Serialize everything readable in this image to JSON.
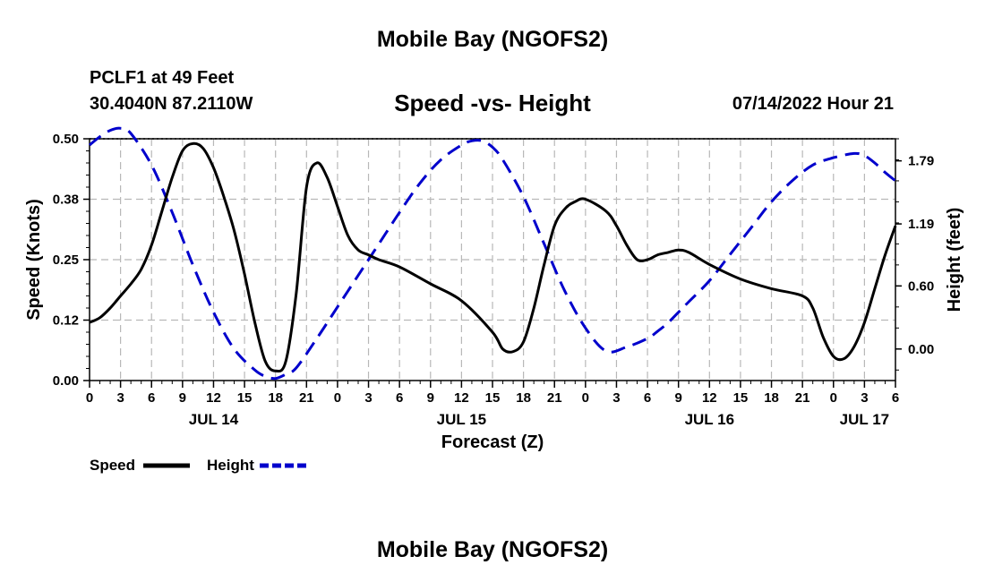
{
  "header": {
    "title": "Mobile Bay (NGOFS2)",
    "station": "PCLF1 at 49 Feet",
    "coordinates": "30.4040N  87.2110W",
    "timestamp": "07/14/2022 Hour 21"
  },
  "footer": {
    "title": "Mobile Bay (NGOFS2)"
  },
  "chart_data": {
    "type": "line",
    "title": "Speed -vs- Height",
    "xlabel": "Forecast (Z)",
    "ylabel_left": "Speed (Knots)",
    "ylabel_right": "Height (feet)",
    "x_unit": "hours from 2022-07-14 00Z",
    "xlim": [
      0,
      78
    ],
    "ylim_left": [
      0,
      0.5
    ],
    "ylim_right": [
      -0.3,
      2.0
    ],
    "grid": true,
    "x_ticks": [
      0,
      3,
      6,
      9,
      12,
      15,
      18,
      21,
      24,
      27,
      30,
      33,
      36,
      39,
      42,
      45,
      48,
      51,
      54,
      57,
      60,
      63,
      66,
      69,
      72,
      75,
      78
    ],
    "x_tick_labels": [
      "0",
      "3",
      "6",
      "9",
      "12",
      "15",
      "18",
      "21",
      "0",
      "3",
      "6",
      "9",
      "12",
      "15",
      "18",
      "21",
      "0",
      "3",
      "6",
      "9",
      "12",
      "15",
      "18",
      "21",
      "0",
      "3",
      "6"
    ],
    "date_labels": [
      {
        "label": "JUL 14",
        "x": 12
      },
      {
        "label": "JUL 15",
        "x": 36
      },
      {
        "label": "JUL 16",
        "x": 60
      },
      {
        "label": "JUL 17",
        "x": 75
      }
    ],
    "left_ticks": [
      {
        "value": 0,
        "label": "0.00"
      },
      {
        "value": 0.125,
        "label": "0.12"
      },
      {
        "value": 0.25,
        "label": "0.25"
      },
      {
        "value": 0.375,
        "label": "0.38"
      },
      {
        "value": 0.5,
        "label": "0.50"
      }
    ],
    "right_ticks": [
      {
        "value": 0,
        "label": "0.00"
      },
      {
        "value": 0.6,
        "label": "0.60"
      },
      {
        "value": 1.19,
        "label": "1.19"
      },
      {
        "value": 1.79,
        "label": "1.79"
      }
    ],
    "series": [
      {
        "name": "Speed",
        "axis": "left",
        "color": "#000000",
        "style": "solid",
        "x": [
          0,
          1,
          2,
          3,
          4,
          5,
          6,
          7,
          8,
          9,
          10,
          11,
          12,
          13,
          14,
          15,
          16,
          17,
          18,
          19,
          20,
          21,
          22,
          23,
          24,
          25,
          26,
          27,
          28,
          30,
          33,
          36,
          39,
          40,
          41,
          42,
          43,
          44,
          45,
          46,
          47,
          48,
          50,
          51,
          52,
          53,
          54,
          55,
          56,
          57,
          58,
          60,
          63,
          66,
          69,
          70,
          71,
          72,
          73,
          74,
          75,
          76,
          77,
          78
        ],
        "values": [
          0.12,
          0.13,
          0.15,
          0.175,
          0.2,
          0.23,
          0.28,
          0.35,
          0.42,
          0.475,
          0.49,
          0.48,
          0.44,
          0.38,
          0.31,
          0.22,
          0.12,
          0.04,
          0.02,
          0.04,
          0.18,
          0.4,
          0.45,
          0.42,
          0.36,
          0.3,
          0.27,
          0.26,
          0.25,
          0.235,
          0.2,
          0.165,
          0.1,
          0.065,
          0.06,
          0.08,
          0.15,
          0.24,
          0.32,
          0.355,
          0.37,
          0.375,
          0.35,
          0.32,
          0.28,
          0.25,
          0.25,
          0.26,
          0.265,
          0.27,
          0.265,
          0.24,
          0.21,
          0.19,
          0.175,
          0.15,
          0.09,
          0.05,
          0.045,
          0.07,
          0.12,
          0.19,
          0.26,
          0.32
        ]
      },
      {
        "name": "Height",
        "axis": "right",
        "color": "#0000cc",
        "style": "dashed",
        "x": [
          0,
          1,
          2,
          3,
          4,
          6,
          8,
          10,
          12,
          14,
          16,
          17,
          18,
          19,
          20,
          22,
          24,
          26,
          28,
          30,
          32,
          34,
          36,
          37,
          38,
          39,
          40,
          42,
          44,
          46,
          48,
          50,
          52,
          54,
          55,
          56,
          57,
          58,
          60,
          62,
          64,
          66,
          68,
          70,
          72,
          74,
          75,
          76,
          77,
          78
        ],
        "values": [
          1.94,
          2.02,
          2.08,
          2.1,
          2.05,
          1.75,
          1.3,
          0.8,
          0.35,
          0.0,
          -0.2,
          -0.26,
          -0.28,
          -0.24,
          -0.18,
          0.1,
          0.4,
          0.7,
          1.0,
          1.3,
          1.58,
          1.8,
          1.94,
          1.98,
          1.98,
          1.92,
          1.8,
          1.45,
          1.0,
          0.55,
          0.2,
          -0.02,
          0.02,
          0.1,
          0.17,
          0.25,
          0.35,
          0.45,
          0.65,
          0.9,
          1.15,
          1.4,
          1.6,
          1.75,
          1.82,
          1.86,
          1.84,
          1.77,
          1.68,
          1.6
        ]
      }
    ],
    "legend": {
      "placement": "bottom-left",
      "items": [
        "Speed",
        "Height"
      ]
    }
  }
}
